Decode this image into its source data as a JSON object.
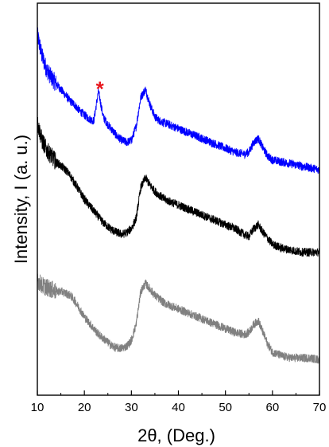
{
  "chart_data": {
    "type": "line",
    "xlabel": "2θ, (Deg.)",
    "ylabel": "Intensity, I (a. u.)",
    "xlim": [
      10,
      70
    ],
    "ylim": [
      0,
      100
    ],
    "x_ticks": [
      10,
      20,
      30,
      40,
      50,
      60,
      70
    ],
    "y_ticks_shown": false,
    "grid": false,
    "legend": "none",
    "annotation": {
      "text": "*",
      "x": 23.3,
      "color": "#e8151b"
    },
    "series": [
      {
        "color": "#0000ff",
        "points": [
          [
            10,
            92
          ],
          [
            11,
            86.5
          ],
          [
            12,
            83
          ],
          [
            13,
            81
          ],
          [
            14,
            79.5
          ],
          [
            15,
            78
          ],
          [
            16,
            76.5
          ],
          [
            17,
            75
          ],
          [
            18,
            74
          ],
          [
            19,
            72.5
          ],
          [
            20,
            71.5
          ],
          [
            21,
            70.5
          ],
          [
            22,
            70
          ],
          [
            23,
            77.5
          ],
          [
            24,
            71
          ],
          [
            25,
            69
          ],
          [
            26,
            67.5
          ],
          [
            27,
            66
          ],
          [
            28,
            65
          ],
          [
            29,
            64.5
          ],
          [
            30,
            65
          ],
          [
            31,
            68.5
          ],
          [
            32,
            76
          ],
          [
            33,
            78
          ],
          [
            34,
            74
          ],
          [
            35,
            71
          ],
          [
            36,
            70
          ],
          [
            37,
            69.5
          ],
          [
            38,
            69
          ],
          [
            39,
            68.5
          ],
          [
            40,
            68
          ],
          [
            42,
            67
          ],
          [
            44,
            66
          ],
          [
            46,
            65
          ],
          [
            48,
            64
          ],
          [
            50,
            63
          ],
          [
            52,
            62
          ],
          [
            54,
            61.5
          ],
          [
            55,
            62
          ],
          [
            56,
            64.5
          ],
          [
            57,
            65.5
          ],
          [
            58,
            63
          ],
          [
            59,
            61
          ],
          [
            60,
            60
          ],
          [
            62,
            59.5
          ],
          [
            64,
            59
          ],
          [
            66,
            58.5
          ],
          [
            68,
            58
          ],
          [
            70,
            57.5
          ]
        ]
      },
      {
        "color": "#000000",
        "points": [
          [
            10,
            69.5
          ],
          [
            11,
            65
          ],
          [
            12,
            62.5
          ],
          [
            13,
            61
          ],
          [
            14,
            59.5
          ],
          [
            15,
            58.5
          ],
          [
            16,
            57.5
          ],
          [
            17,
            56
          ],
          [
            18,
            54
          ],
          [
            19,
            52
          ],
          [
            20,
            50
          ],
          [
            21,
            48.5
          ],
          [
            22,
            47
          ],
          [
            23,
            45.5
          ],
          [
            24,
            44
          ],
          [
            25,
            43
          ],
          [
            26,
            42
          ],
          [
            27,
            41.5
          ],
          [
            28,
            41
          ],
          [
            29,
            41.5
          ],
          [
            30,
            42.5
          ],
          [
            31,
            45
          ],
          [
            32,
            53
          ],
          [
            33,
            55.5
          ],
          [
            34,
            53.5
          ],
          [
            35,
            52
          ],
          [
            36,
            51
          ],
          [
            37,
            50
          ],
          [
            38,
            49.5
          ],
          [
            40,
            48.5
          ],
          [
            42,
            47.5
          ],
          [
            44,
            46.5
          ],
          [
            46,
            45.5
          ],
          [
            48,
            44.5
          ],
          [
            50,
            43.5
          ],
          [
            52,
            42.5
          ],
          [
            54,
            41
          ],
          [
            55,
            40.5
          ],
          [
            56,
            42.5
          ],
          [
            57,
            43.5
          ],
          [
            58,
            41.5
          ],
          [
            59,
            40
          ],
          [
            60,
            38.5
          ],
          [
            62,
            37.5
          ],
          [
            64,
            37
          ],
          [
            66,
            36.5
          ],
          [
            68,
            36.5
          ],
          [
            70,
            36.5
          ]
        ]
      },
      {
        "color": "#808080",
        "points": [
          [
            10,
            29.5
          ],
          [
            11,
            28
          ],
          [
            12,
            27.5
          ],
          [
            13,
            27
          ],
          [
            14,
            26.5
          ],
          [
            15,
            26.5
          ],
          [
            16,
            26
          ],
          [
            17,
            25.5
          ],
          [
            18,
            24
          ],
          [
            19,
            22
          ],
          [
            20,
            20
          ],
          [
            21,
            18.5
          ],
          [
            22,
            17
          ],
          [
            23,
            15.5
          ],
          [
            24,
            14.5
          ],
          [
            25,
            13.5
          ],
          [
            26,
            12.5
          ],
          [
            27,
            12
          ],
          [
            28,
            12
          ],
          [
            29,
            12.5
          ],
          [
            30,
            14
          ],
          [
            31,
            18
          ],
          [
            32,
            26.5
          ],
          [
            33,
            28.5
          ],
          [
            34,
            27
          ],
          [
            35,
            25.5
          ],
          [
            36,
            24.5
          ],
          [
            37,
            23.5
          ],
          [
            38,
            23
          ],
          [
            40,
            22
          ],
          [
            42,
            21
          ],
          [
            44,
            20
          ],
          [
            46,
            19
          ],
          [
            48,
            18
          ],
          [
            50,
            17
          ],
          [
            52,
            16
          ],
          [
            54,
            15.5
          ],
          [
            55,
            16
          ],
          [
            56,
            18
          ],
          [
            57,
            19
          ],
          [
            58,
            16
          ],
          [
            59,
            13
          ],
          [
            60,
            11
          ],
          [
            62,
            10
          ],
          [
            64,
            9.5
          ],
          [
            66,
            9.5
          ],
          [
            68,
            9.5
          ],
          [
            70,
            9
          ]
        ]
      }
    ]
  }
}
